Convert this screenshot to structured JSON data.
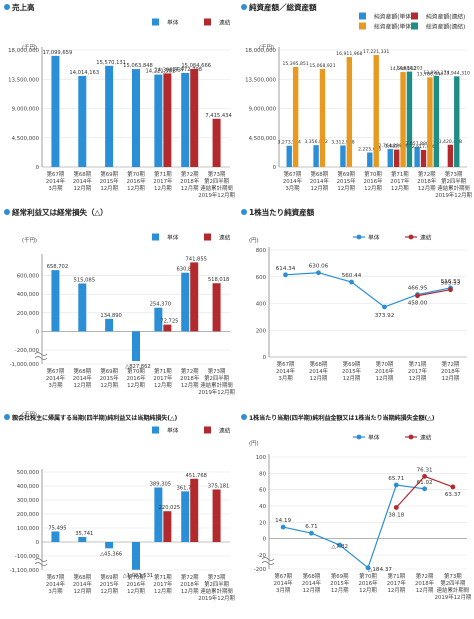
{
  "colors": {
    "blue": "#2a8fd6",
    "red": "#b22a2e",
    "orange": "#e79a1f",
    "teal": "#1d8e86",
    "title_dot": "#2f8ed6",
    "axis": "#777777",
    "grid": "#e2e2e2"
  },
  "legend_common": {
    "single": "単体",
    "consolidated": "連結"
  },
  "period_labels": [
    [
      "第67期",
      "2014年",
      "3月期"
    ],
    [
      "第68期",
      "2014年",
      "12月期"
    ],
    [
      "第69期",
      "2015年",
      "12月期"
    ],
    [
      "第70期",
      "2016年",
      "12月期"
    ],
    [
      "第71期",
      "2017年",
      "12月期"
    ],
    [
      "第72期",
      "2018年",
      "12月期"
    ],
    [
      "第73期",
      "第2四半期",
      "連結累計期間",
      "2019年12月期"
    ]
  ],
  "chart_data": [
    {
      "id": "sales",
      "type": "bar",
      "title": "売上高",
      "unit": "(千円)",
      "ylim": [
        0,
        18000000
      ],
      "yticks": [
        {
          "v": 0,
          "label": "0"
        },
        {
          "v": 4500000,
          "label": "4,500,000"
        },
        {
          "v": 9000000,
          "label": "9,000,000"
        },
        {
          "v": 13500000,
          "label": "13,500,000"
        },
        {
          "v": 18000000,
          "label": "18,000,000"
        }
      ],
      "legend": [
        "単体",
        "連結"
      ],
      "series": [
        {
          "name": "単体",
          "values": [
            17099659,
            14014163,
            15570131,
            15063848,
            14221581,
            14472798,
            null
          ],
          "labels": [
            "17,099,659",
            "14,014,163",
            "15,570,131",
            "15,063,848",
            "14,221,581",
            "14,472,798",
            ""
          ]
        },
        {
          "name": "連結",
          "values": [
            null,
            null,
            null,
            null,
            14398537,
            15084666,
            7415434
          ],
          "labels": [
            "",
            "",
            "",
            "",
            "14,398,537",
            "15,084,666",
            "7,415,434"
          ]
        }
      ]
    },
    {
      "id": "assets",
      "type": "bar",
      "title": "純資産額／総資産額",
      "unit": "(千円)",
      "ylim": [
        0,
        18000000
      ],
      "yticks": [
        {
          "v": 0,
          "label": "0"
        },
        {
          "v": 4500000,
          "label": "4,500,000"
        },
        {
          "v": 9000000,
          "label": "9,000,000"
        },
        {
          "v": 13500000,
          "label": "13,500,000"
        },
        {
          "v": 18000000,
          "label": "18,000,000"
        }
      ],
      "legend": [
        "純資産額(単体)",
        "純資産額(連結)",
        "総資産額(単体)",
        "総資産額(連結)"
      ],
      "series": [
        {
          "name": "純資産額(単体)",
          "values": [
            3273514,
            3356852,
            3312968,
            2225055,
            2764290,
            3057880,
            null
          ],
          "labels": [
            "3,273,514",
            "3,356,852",
            "3,312,968",
            "2,225,055",
            "2,764,290",
            "3,057,880",
            ""
          ]
        },
        {
          "name": "純資産額(連結)",
          "values": [
            null,
            null,
            null,
            null,
            2682016,
            2617826,
            3420418
          ],
          "labels": [
            "",
            "",
            "",
            "",
            "2,682,016",
            "2,617,826",
            "3,420,418"
          ]
        },
        {
          "name": "総資産額(単体)",
          "values": [
            15395851,
            15068921,
            16911968,
            17221331,
            14608102,
            13786944,
            null
          ],
          "labels": [
            "15,395,851",
            "15,068,921",
            "16,911,968",
            "17,221,331",
            "14,608,102",
            "13,786,944",
            ""
          ]
        },
        {
          "name": "総資産額(連結)",
          "values": [
            null,
            null,
            null,
            null,
            14680203,
            13999174,
            13944310
          ],
          "labels": [
            "",
            "",
            "",
            "",
            "14,680,203",
            "13,999,174",
            "13,944,310"
          ]
        }
      ]
    },
    {
      "id": "ordinary",
      "type": "bar",
      "title": "経常利益又は経常損失（△）",
      "unit": "(千円)",
      "ylim": [
        -1000000,
        800000
      ],
      "broken_axis": true,
      "yticks": [
        {
          "v": -1000000,
          "label": "-1,000,000"
        },
        {
          "v": -200000,
          "label": "-200,000"
        },
        {
          "v": 0,
          "label": "0"
        },
        {
          "v": 200000,
          "label": "200,000"
        },
        {
          "v": 400000,
          "label": "400,000"
        },
        {
          "v": 600000,
          "label": "600,000"
        }
      ],
      "legend": [
        "単体",
        "連結"
      ],
      "series": [
        {
          "name": "単体",
          "values": [
            658702,
            515085,
            134890,
            -827862,
            254370,
            630885,
            null
          ],
          "labels": [
            "658,702",
            "515,085",
            "134,890",
            "△827,862",
            "254,370",
            "630,885",
            ""
          ]
        },
        {
          "name": "連結",
          "values": [
            null,
            null,
            null,
            null,
            72725,
            741855,
            518018
          ],
          "labels": [
            "",
            "",
            "",
            "",
            "72,725",
            "741,855",
            "518,018"
          ]
        }
      ]
    },
    {
      "id": "bps",
      "type": "line",
      "title": "1株当たり純資産額",
      "unit": "(円)",
      "ylim": [
        0,
        800
      ],
      "yticks": [
        {
          "v": 0,
          "label": "0"
        },
        {
          "v": 200,
          "label": "200"
        },
        {
          "v": 400,
          "label": "400"
        },
        {
          "v": 600,
          "label": "600"
        },
        {
          "v": 800,
          "label": "800"
        }
      ],
      "legend": [
        "単体",
        "連結"
      ],
      "categories_count": 6,
      "series": [
        {
          "name": "単体",
          "values": [
            614.34,
            630.06,
            560.44,
            373.92,
            466.95,
            516.53
          ],
          "labels": [
            "614.34",
            "630.06",
            "560.44",
            "373.92",
            "466.95",
            "516.53"
          ]
        },
        {
          "name": "連結",
          "values": [
            null,
            null,
            null,
            null,
            458.0,
            503.33
          ],
          "labels": [
            "",
            "",
            "",
            "",
            "458.00",
            "503.33"
          ]
        }
      ]
    },
    {
      "id": "netincome",
      "type": "bar",
      "title": "親会社株主に帰属する当期(四半期)純利益又は当期純損失(△)",
      "unit": "(千円)",
      "ylim": [
        -1100000,
        500000
      ],
      "broken_axis": true,
      "yticks": [
        {
          "v": -1100000,
          "label": "-1,100,000"
        },
        {
          "v": -100000,
          "label": "-100,000"
        },
        {
          "v": 0,
          "label": "0"
        },
        {
          "v": 100000,
          "label": "100,000"
        },
        {
          "v": 200000,
          "label": "200,000"
        },
        {
          "v": 300000,
          "label": "300,000"
        },
        {
          "v": 400000,
          "label": "400,000"
        },
        {
          "v": 500000,
          "label": "500,000"
        }
      ],
      "legend": [
        "単体",
        "連結"
      ],
      "series": [
        {
          "name": "単体",
          "values": [
            75495,
            35741,
            -45366,
            -1083531,
            389305,
            361746,
            null
          ],
          "labels": [
            "75,495",
            "35,741",
            "△45,366",
            "△1,083,531",
            "389,305",
            "361,746",
            ""
          ]
        },
        {
          "name": "連結",
          "values": [
            null,
            null,
            null,
            null,
            220025,
            451768,
            375181
          ],
          "labels": [
            "",
            "",
            "",
            "",
            "220,025",
            "451,768",
            "375,181"
          ]
        }
      ]
    },
    {
      "id": "eps",
      "type": "line",
      "title": "1株当たり当期(四半期)純利益金額又は1株当たり当期純損失金額(△)",
      "unit": "(円)",
      "ylim": [
        -200,
        100
      ],
      "broken_axis": true,
      "yticks": [
        {
          "v": -200,
          "label": "-200"
        },
        {
          "v": -20,
          "label": "-20"
        },
        {
          "v": 0,
          "label": "0"
        },
        {
          "v": 20,
          "label": "20"
        },
        {
          "v": 40,
          "label": "40"
        },
        {
          "v": 60,
          "label": "60"
        },
        {
          "v": 80,
          "label": "80"
        },
        {
          "v": 100,
          "label": "100"
        }
      ],
      "legend": [
        "単体",
        "連結"
      ],
      "categories_count": 7,
      "series": [
        {
          "name": "単体",
          "values": [
            14.19,
            6.71,
            -7.82,
            -184.37,
            65.71,
            61.02,
            null
          ],
          "labels": [
            "14.19",
            "6.71",
            "△7.82",
            "△184.37",
            "65.71",
            "61.02",
            ""
          ]
        },
        {
          "name": "連結",
          "values": [
            null,
            null,
            null,
            null,
            38.18,
            76.31,
            63.37
          ],
          "labels": [
            "",
            "",
            "",
            "",
            "38.18",
            "76.31",
            "63.37"
          ]
        }
      ]
    }
  ]
}
